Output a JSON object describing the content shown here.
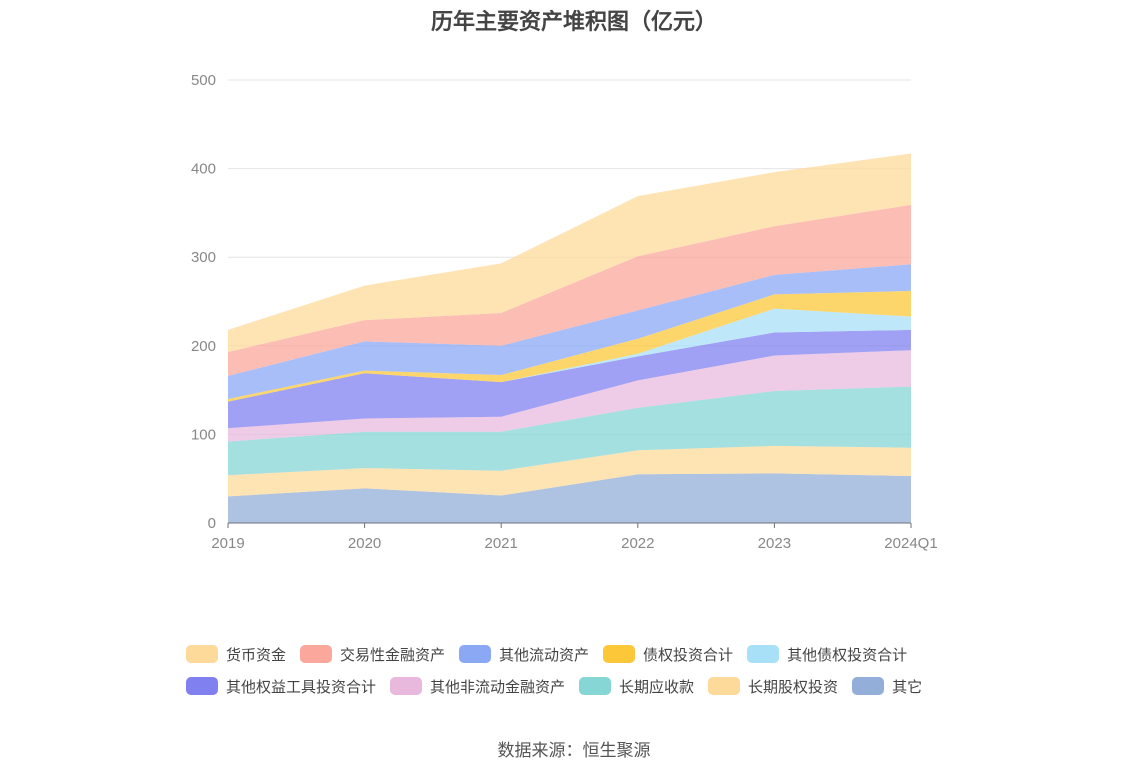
{
  "chart_data": {
    "type": "area",
    "stacked": true,
    "title": "历年主要资产堆积图（亿元）",
    "categories": [
      "2019",
      "2020",
      "2021",
      "2022",
      "2023",
      "2024Q1"
    ],
    "ylim": [
      0,
      500
    ],
    "yticks": [
      0,
      100,
      200,
      300,
      400,
      500
    ],
    "grid": true,
    "legend_position": "bottom",
    "series": [
      {
        "name": "其它",
        "color": "#93aed8",
        "values": [
          30,
          39,
          31,
          55,
          56,
          53
        ]
      },
      {
        "name": "长期股权投资",
        "color": "#fdd99a",
        "values": [
          24,
          23,
          28,
          27,
          31,
          32
        ]
      },
      {
        "name": "长期应收款",
        "color": "#86d6d6",
        "values": [
          38,
          41,
          44,
          48,
          62,
          69
        ]
      },
      {
        "name": "其他非流动金融资产",
        "color": "#e8b9dd",
        "values": [
          15,
          15,
          17,
          31,
          40,
          41
        ]
      },
      {
        "name": "其他权益工具投资合计",
        "color": "#8080f0",
        "values": [
          30,
          51,
          39,
          27,
          26,
          23
        ]
      },
      {
        "name": "其他债权投资合计",
        "color": "#a8e0f8",
        "values": [
          0,
          0,
          0,
          3,
          27,
          15
        ]
      },
      {
        "name": "债权投资合计",
        "color": "#fcc83a",
        "values": [
          3,
          3,
          8,
          17,
          16,
          29
        ]
      },
      {
        "name": "其他流动资产",
        "color": "#8ba8f5",
        "values": [
          26,
          33,
          33,
          32,
          22,
          30
        ]
      },
      {
        "name": "交易性金融资产",
        "color": "#fba79c",
        "values": [
          27,
          24,
          37,
          61,
          55,
          67
        ]
      },
      {
        "name": "货币资金",
        "color": "#fdd99a",
        "values": [
          25,
          39,
          56,
          68,
          61,
          58
        ]
      }
    ]
  },
  "legend": {
    "rows": [
      [
        {
          "label": "货币资金",
          "color": "#fdd99a"
        },
        {
          "label": "交易性金融资产",
          "color": "#fba79c"
        },
        {
          "label": "其他流动资产",
          "color": "#8ba8f5"
        },
        {
          "label": "债权投资合计",
          "color": "#fcc83a"
        },
        {
          "label": "其他债权投资合计",
          "color": "#a8e0f8"
        }
      ],
      [
        {
          "label": "其他权益工具投资合计",
          "color": "#8080f0"
        },
        {
          "label": "其他非流动金融资产",
          "color": "#e8b9dd"
        },
        {
          "label": "长期应收款",
          "color": "#86d6d6"
        },
        {
          "label": "长期股权投资",
          "color": "#fdd99a"
        },
        {
          "label": "其它",
          "color": "#93aed8"
        }
      ]
    ]
  },
  "source": "数据来源：恒生聚源"
}
